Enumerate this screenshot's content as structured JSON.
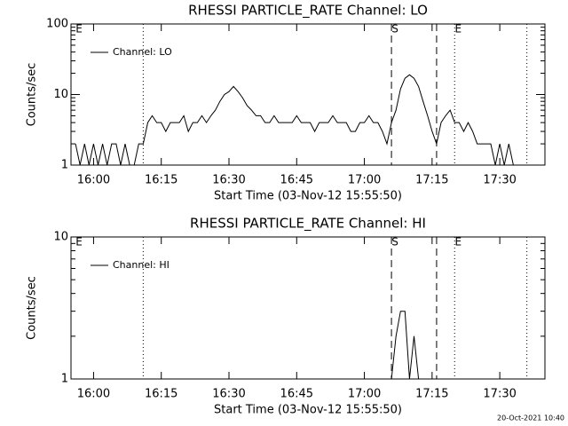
{
  "chart_data": [
    {
      "type": "line",
      "title": "RHESSI PARTICLE_RATE Channel: LO",
      "xlabel": "Start Time (03-Nov-12 15:55:50)",
      "ylabel": "Counts/sec",
      "log_y": true,
      "grid": false,
      "legend": "upper left",
      "xlim": [
        "15:55",
        "17:40"
      ],
      "xticks": [
        "16:00",
        "16:15",
        "16:30",
        "16:45",
        "17:00",
        "17:15",
        "17:30"
      ],
      "ylim": [
        1,
        100
      ],
      "yticks": [
        1,
        10,
        100
      ],
      "x": [
        "15:56",
        "15:57",
        "15:58",
        "15:59",
        "16:00",
        "16:01",
        "16:02",
        "16:03",
        "16:04",
        "16:05",
        "16:06",
        "16:07",
        "16:08",
        "16:09",
        "16:10",
        "16:11",
        "16:12",
        "16:13",
        "16:14",
        "16:15",
        "16:16",
        "16:17",
        "16:18",
        "16:19",
        "16:20",
        "16:21",
        "16:22",
        "16:23",
        "16:24",
        "16:25",
        "16:26",
        "16:27",
        "16:28",
        "16:29",
        "16:30",
        "16:31",
        "16:32",
        "16:33",
        "16:34",
        "16:35",
        "16:36",
        "16:37",
        "16:38",
        "16:39",
        "16:40",
        "16:41",
        "16:42",
        "16:43",
        "16:44",
        "16:45",
        "16:46",
        "16:47",
        "16:48",
        "16:49",
        "16:50",
        "16:51",
        "16:52",
        "16:53",
        "16:54",
        "16:55",
        "16:56",
        "16:57",
        "16:58",
        "16:59",
        "17:00",
        "17:01",
        "17:02",
        "17:03",
        "17:04",
        "17:05",
        "17:06",
        "17:07",
        "17:08",
        "17:09",
        "17:10",
        "17:11",
        "17:12",
        "17:13",
        "17:14",
        "17:15",
        "17:16",
        "17:17",
        "17:18",
        "17:19",
        "17:20",
        "17:21",
        "17:22",
        "17:23",
        "17:24",
        "17:25",
        "17:26",
        "17:27",
        "17:28",
        "17:29",
        "17:30",
        "17:31",
        "17:32",
        "17:33",
        "17:34",
        "17:35"
      ],
      "series": [
        {
          "name": "Channel: LO",
          "color": "#000000",
          "values": [
            2,
            1,
            2,
            1,
            2,
            1,
            2,
            1,
            2,
            2,
            1,
            2,
            1,
            1,
            2,
            2,
            4,
            5,
            4,
            4,
            3,
            4,
            4,
            4,
            5,
            3,
            4,
            4,
            5,
            4,
            5,
            6,
            8,
            10,
            11,
            13,
            11,
            9,
            7,
            6,
            5,
            5,
            4,
            4,
            5,
            4,
            4,
            4,
            4,
            5,
            4,
            4,
            4,
            3,
            4,
            4,
            4,
            5,
            4,
            4,
            4,
            3,
            3,
            4,
            4,
            5,
            4,
            4,
            3,
            2,
            4,
            6,
            12,
            17,
            19,
            17,
            13,
            8,
            5,
            3,
            2,
            4,
            5,
            6,
            4,
            4,
            3,
            4,
            3,
            2,
            2,
            2,
            2,
            1,
            2,
            1,
            2,
            1,
            1,
            1
          ]
        }
      ],
      "markers": [
        {
          "x": "16:11",
          "style": "dotted"
        },
        {
          "x": "17:06",
          "style": "dashed"
        },
        {
          "x": "17:16",
          "style": "dashed"
        },
        {
          "x": "17:20",
          "style": "dotted"
        },
        {
          "x": "17:36",
          "style": "dotted"
        }
      ],
      "labels": [
        {
          "x": "15:56",
          "text": "E"
        },
        {
          "x": "17:06",
          "text": "S"
        },
        {
          "x": "17:20",
          "text": "E"
        }
      ]
    },
    {
      "type": "line",
      "title": "RHESSI PARTICLE_RATE Channel: HI",
      "xlabel": "Start Time (03-Nov-12 15:55:50)",
      "ylabel": "Counts/sec",
      "log_y": true,
      "grid": false,
      "legend": "upper left",
      "xlim": [
        "15:55",
        "17:40"
      ],
      "xticks": [
        "16:00",
        "16:15",
        "16:30",
        "16:45",
        "17:00",
        "17:15",
        "17:30"
      ],
      "ylim": [
        1,
        10
      ],
      "yticks": [
        1,
        10
      ],
      "x": [
        "17:06",
        "17:07",
        "17:08",
        "17:09",
        "17:10",
        "17:11",
        "17:12"
      ],
      "series": [
        {
          "name": "Channel: HI",
          "color": "#000000",
          "values": [
            1,
            2,
            3,
            3,
            1,
            2,
            1
          ]
        }
      ],
      "markers": [
        {
          "x": "16:11",
          "style": "dotted"
        },
        {
          "x": "17:06",
          "style": "dashed"
        },
        {
          "x": "17:16",
          "style": "dashed"
        },
        {
          "x": "17:20",
          "style": "dotted"
        },
        {
          "x": "17:36",
          "style": "dotted"
        }
      ],
      "labels": [
        {
          "x": "15:56",
          "text": "E"
        },
        {
          "x": "17:06",
          "text": "S"
        },
        {
          "x": "17:20",
          "text": "E"
        }
      ]
    }
  ],
  "footer": "20-Oct-2021 10:40"
}
